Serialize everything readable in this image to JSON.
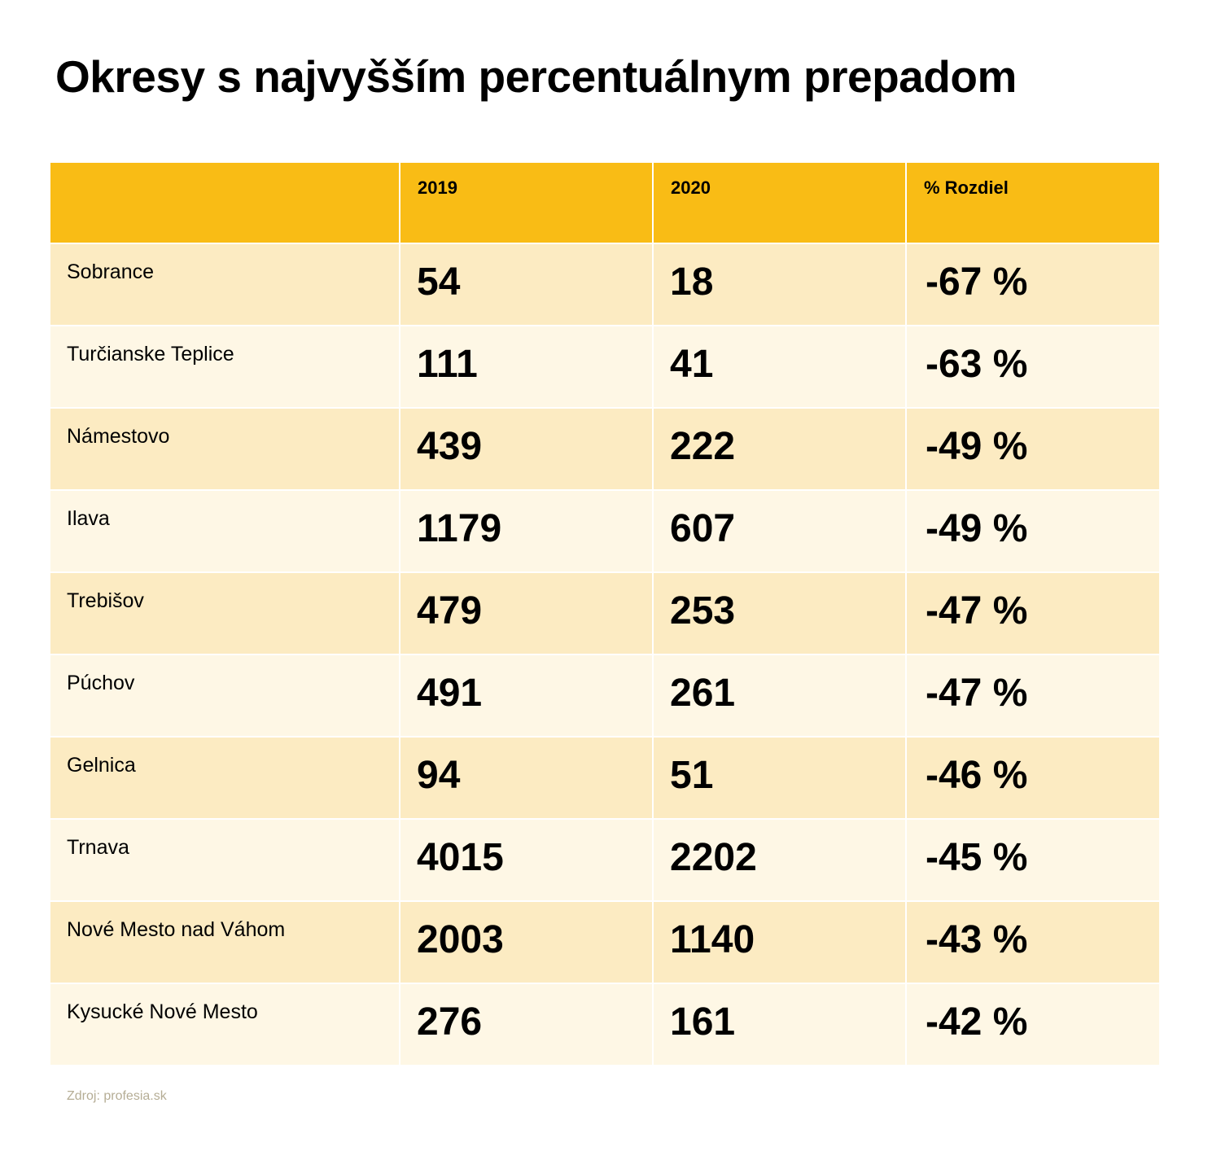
{
  "title": "Okresy s najvyšším percentuálnym prepadom",
  "table": {
    "headers": [
      "",
      "2019",
      "2020",
      "% Rozdiel"
    ],
    "rows": [
      {
        "district": "Sobrance",
        "y2019": "54",
        "y2020": "18",
        "diff": "-67 %"
      },
      {
        "district": "Turčianske Teplice",
        "y2019": "111",
        "y2020": "41",
        "diff": "-63 %"
      },
      {
        "district": "Námestovo",
        "y2019": "439",
        "y2020": "222",
        "diff": "-49 %"
      },
      {
        "district": "Ilava",
        "y2019": "1179",
        "y2020": "607",
        "diff": "-49 %"
      },
      {
        "district": "Trebišov",
        "y2019": "479",
        "y2020": "253",
        "diff": "-47 %"
      },
      {
        "district": "Púchov",
        "y2019": "491",
        "y2020": "261",
        "diff": "-47 %"
      },
      {
        "district": "Gelnica",
        "y2019": "94",
        "y2020": "51",
        "diff": "-46 %"
      },
      {
        "district": "Trnava",
        "y2019": "4015",
        "y2020": "2202",
        "diff": "-45 %"
      },
      {
        "district": "Nové Mesto nad Váhom",
        "y2019": "2003",
        "y2020": "1140",
        "diff": "-43 %"
      },
      {
        "district": "Kysucké Nové Mesto",
        "y2019": "276",
        "y2020": "161",
        "diff": "-42 %"
      }
    ]
  },
  "source": "Zdroj: profesia.sk",
  "colors": {
    "header": "#f9bc15",
    "row_odd": "#fcebc2",
    "row_even": "#fef7e5"
  }
}
